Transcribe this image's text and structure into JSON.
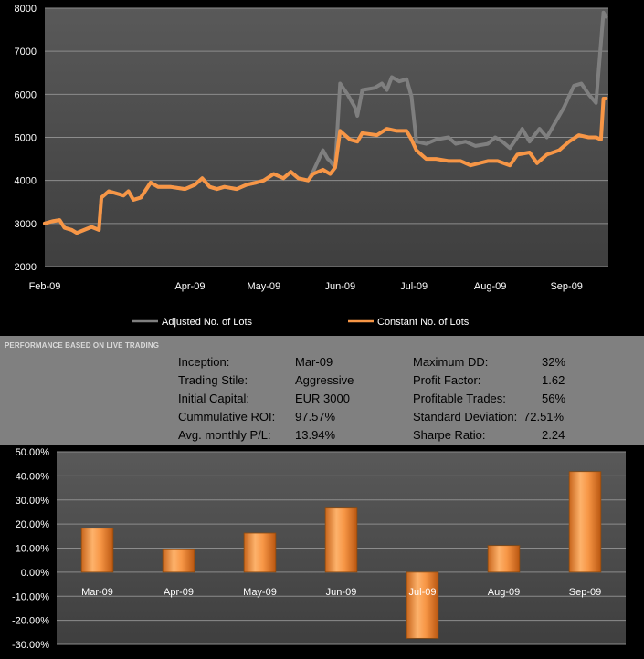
{
  "equity_chart": {
    "chart_data": {
      "type": "line",
      "title": "",
      "xlabel": "",
      "ylabel": "",
      "ylim": [
        2000,
        8000
      ],
      "yticks": [
        2000,
        3000,
        4000,
        5000,
        6000,
        7000,
        8000
      ],
      "x_ticks": [
        "Feb-09",
        "Apr-09",
        "May-09",
        "Jun-09",
        "Jul-09",
        "Aug-09",
        "Sep-09"
      ],
      "grid": true,
      "legend_position": "bottom",
      "series": [
        {
          "name": "Adjusted No. of Lots",
          "color": "#7f7f7f",
          "points": [
            [
              "2009-02-01",
              3000
            ],
            [
              "2009-02-04",
              3050
            ],
            [
              "2009-02-07",
              3080
            ],
            [
              "2009-02-09",
              2900
            ],
            [
              "2009-02-12",
              2850
            ],
            [
              "2009-02-14",
              2780
            ],
            [
              "2009-02-17",
              2850
            ],
            [
              "2009-02-20",
              2920
            ],
            [
              "2009-02-23",
              2850
            ],
            [
              "2009-02-24",
              3600
            ],
            [
              "2009-02-27",
              3750
            ],
            [
              "2009-03-02",
              3700
            ],
            [
              "2009-03-05",
              3650
            ],
            [
              "2009-03-07",
              3750
            ],
            [
              "2009-03-09",
              3550
            ],
            [
              "2009-03-12",
              3600
            ],
            [
              "2009-03-16",
              3950
            ],
            [
              "2009-03-19",
              3850
            ],
            [
              "2009-03-24",
              3850
            ],
            [
              "2009-03-30",
              3800
            ],
            [
              "2009-04-03",
              3900
            ],
            [
              "2009-04-06",
              4050
            ],
            [
              "2009-04-09",
              3850
            ],
            [
              "2009-04-12",
              3800
            ],
            [
              "2009-04-15",
              3850
            ],
            [
              "2009-04-20",
              3800
            ],
            [
              "2009-04-24",
              3900
            ],
            [
              "2009-04-28",
              3950
            ],
            [
              "2009-05-01",
              4000
            ],
            [
              "2009-05-05",
              4150
            ],
            [
              "2009-05-09",
              4050
            ],
            [
              "2009-05-12",
              4200
            ],
            [
              "2009-05-15",
              4050
            ],
            [
              "2009-05-19",
              4000
            ],
            [
              "2009-05-21",
              4200
            ],
            [
              "2009-05-23",
              4450
            ],
            [
              "2009-05-25",
              4700
            ],
            [
              "2009-05-27",
              4500
            ],
            [
              "2009-05-28",
              4450
            ],
            [
              "2009-05-30",
              4300
            ],
            [
              "2009-06-01",
              6250
            ],
            [
              "2009-06-04",
              6000
            ],
            [
              "2009-06-07",
              5700
            ],
            [
              "2009-06-08",
              5500
            ],
            [
              "2009-06-10",
              6100
            ],
            [
              "2009-06-15",
              6150
            ],
            [
              "2009-06-18",
              6250
            ],
            [
              "2009-06-20",
              6100
            ],
            [
              "2009-06-22",
              6400
            ],
            [
              "2009-06-25",
              6300
            ],
            [
              "2009-06-28",
              6350
            ],
            [
              "2009-06-30",
              5950
            ],
            [
              "2009-07-02",
              4900
            ],
            [
              "2009-07-06",
              4850
            ],
            [
              "2009-07-10",
              4950
            ],
            [
              "2009-07-15",
              5000
            ],
            [
              "2009-07-18",
              4850
            ],
            [
              "2009-07-22",
              4900
            ],
            [
              "2009-07-26",
              4800
            ],
            [
              "2009-07-31",
              4850
            ],
            [
              "2009-08-03",
              5000
            ],
            [
              "2009-08-06",
              4900
            ],
            [
              "2009-08-09",
              4750
            ],
            [
              "2009-08-12",
              5000
            ],
            [
              "2009-08-14",
              5200
            ],
            [
              "2009-08-17",
              4900
            ],
            [
              "2009-08-21",
              5200
            ],
            [
              "2009-08-24",
              5000
            ],
            [
              "2009-08-27",
              5300
            ],
            [
              "2009-08-31",
              5700
            ],
            [
              "2009-09-04",
              6200
            ],
            [
              "2009-09-07",
              6250
            ],
            [
              "2009-09-10",
              6000
            ],
            [
              "2009-09-13",
              5800
            ],
            [
              "2009-09-16",
              7900
            ],
            [
              "2009-09-17",
              7800
            ]
          ]
        },
        {
          "name": "Constant No. of Lots",
          "color": "#f79646",
          "points": [
            [
              "2009-02-01",
              3000
            ],
            [
              "2009-02-04",
              3050
            ],
            [
              "2009-02-07",
              3080
            ],
            [
              "2009-02-09",
              2900
            ],
            [
              "2009-02-12",
              2850
            ],
            [
              "2009-02-14",
              2780
            ],
            [
              "2009-02-17",
              2850
            ],
            [
              "2009-02-20",
              2920
            ],
            [
              "2009-02-23",
              2850
            ],
            [
              "2009-02-24",
              3600
            ],
            [
              "2009-02-27",
              3750
            ],
            [
              "2009-03-02",
              3700
            ],
            [
              "2009-03-05",
              3650
            ],
            [
              "2009-03-07",
              3750
            ],
            [
              "2009-03-09",
              3550
            ],
            [
              "2009-03-12",
              3600
            ],
            [
              "2009-03-16",
              3950
            ],
            [
              "2009-03-19",
              3850
            ],
            [
              "2009-03-24",
              3850
            ],
            [
              "2009-03-30",
              3800
            ],
            [
              "2009-04-03",
              3900
            ],
            [
              "2009-04-06",
              4050
            ],
            [
              "2009-04-09",
              3850
            ],
            [
              "2009-04-12",
              3800
            ],
            [
              "2009-04-15",
              3850
            ],
            [
              "2009-04-20",
              3800
            ],
            [
              "2009-04-24",
              3900
            ],
            [
              "2009-04-28",
              3950
            ],
            [
              "2009-05-01",
              4000
            ],
            [
              "2009-05-05",
              4150
            ],
            [
              "2009-05-09",
              4050
            ],
            [
              "2009-05-12",
              4200
            ],
            [
              "2009-05-15",
              4050
            ],
            [
              "2009-05-19",
              4000
            ],
            [
              "2009-05-21",
              4150
            ],
            [
              "2009-05-25",
              4250
            ],
            [
              "2009-05-28",
              4150
            ],
            [
              "2009-05-30",
              4300
            ],
            [
              "2009-06-01",
              5150
            ],
            [
              "2009-06-05",
              4950
            ],
            [
              "2009-06-08",
              4900
            ],
            [
              "2009-06-10",
              5100
            ],
            [
              "2009-06-16",
              5050
            ],
            [
              "2009-06-20",
              5200
            ],
            [
              "2009-06-24",
              5150
            ],
            [
              "2009-06-28",
              5150
            ],
            [
              "2009-06-30",
              4950
            ],
            [
              "2009-07-02",
              4700
            ],
            [
              "2009-07-06",
              4500
            ],
            [
              "2009-07-10",
              4500
            ],
            [
              "2009-07-15",
              4450
            ],
            [
              "2009-07-20",
              4450
            ],
            [
              "2009-07-24",
              4350
            ],
            [
              "2009-07-31",
              4450
            ],
            [
              "2009-08-04",
              4450
            ],
            [
              "2009-08-09",
              4350
            ],
            [
              "2009-08-12",
              4600
            ],
            [
              "2009-08-17",
              4650
            ],
            [
              "2009-08-20",
              4400
            ],
            [
              "2009-08-24",
              4600
            ],
            [
              "2009-08-29",
              4700
            ],
            [
              "2009-09-02",
              4900
            ],
            [
              "2009-09-06",
              5050
            ],
            [
              "2009-09-10",
              5000
            ],
            [
              "2009-09-13",
              5000
            ],
            [
              "2009-09-15",
              4950
            ],
            [
              "2009-09-16",
              5900
            ],
            [
              "2009-09-17",
              5900
            ]
          ]
        }
      ]
    }
  },
  "performance": {
    "title": "PERFORMANCE BASED ON LIVE TRADING",
    "left": [
      {
        "label": "Inception:",
        "value": "Mar-09"
      },
      {
        "label": "Trading Stile:",
        "value": "Aggressive"
      },
      {
        "label": "Initial Capital:",
        "value": "EUR 3000"
      },
      {
        "label": "Cummulative ROI:",
        "value": "97.57%"
      },
      {
        "label": "Avg. monthly P/L:",
        "value": "13.94%"
      }
    ],
    "right": [
      {
        "label": "Maximum DD:",
        "value": "32%"
      },
      {
        "label": "Profit Factor:",
        "value": "1.62"
      },
      {
        "label": "Profitable Trades:",
        "value": "56%"
      },
      {
        "label": "Standard Deviation:",
        "value": "72.51%"
      },
      {
        "label": "Sharpe Ratio:",
        "value": "2.24"
      }
    ]
  },
  "monthly_chart": {
    "chart_data": {
      "type": "bar",
      "title": "",
      "xlabel": "",
      "ylabel": "",
      "categories": [
        "Mar-09",
        "Apr-09",
        "May-09",
        "Jun-09",
        "Jul-09",
        "Aug-09",
        "Sep-09"
      ],
      "values": [
        0.1827,
        0.0933,
        0.1625,
        0.2661,
        -0.2749,
        0.1107,
        0.4177
      ],
      "ylim": [
        -0.3,
        0.5
      ],
      "yticks": [
        -0.3,
        -0.2,
        -0.1,
        0.0,
        0.1,
        0.2,
        0.3,
        0.4,
        0.5
      ],
      "tick_format": "percent_2dp",
      "grid": true,
      "bar_color": "#f79646"
    }
  }
}
